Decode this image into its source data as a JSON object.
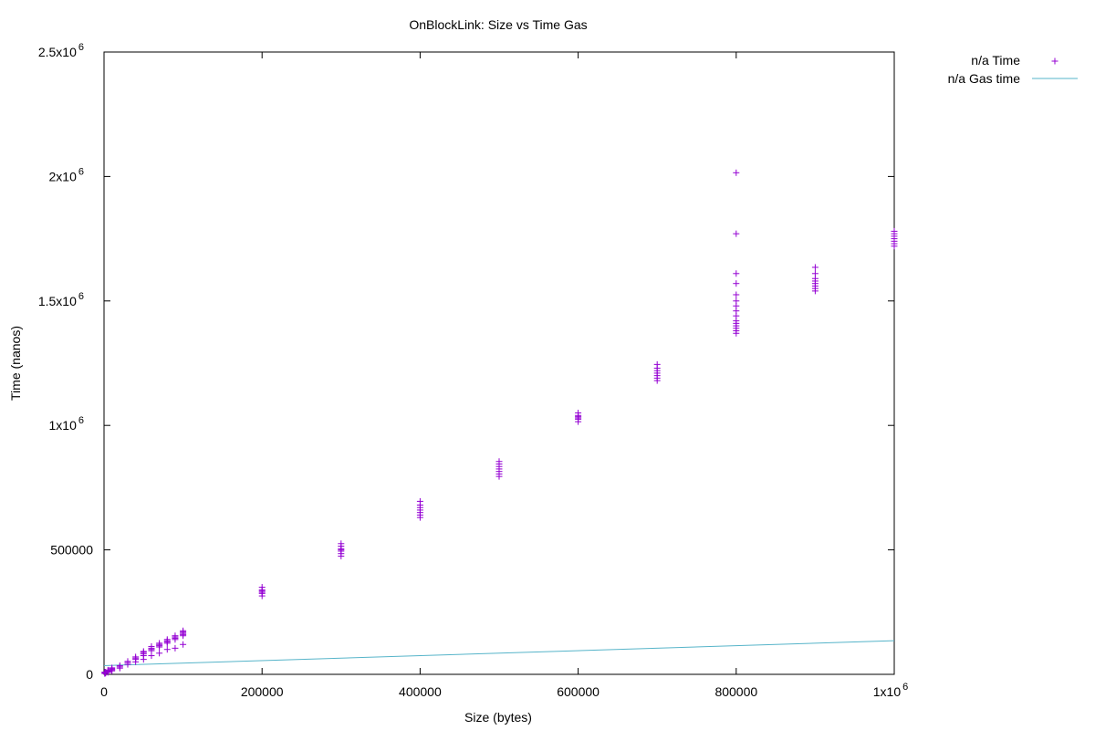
{
  "chart_data": {
    "type": "scatter",
    "title": "OnBlockLink: Size vs Time   Gas",
    "xlabel": "Size (bytes)",
    "ylabel": "Time (nanos)",
    "xlim": [
      0,
      1000000
    ],
    "ylim": [
      0,
      2500000
    ],
    "grid": false,
    "legend_position": "outside-top-right",
    "x_ticks": [
      {
        "value": 0,
        "label": "0"
      },
      {
        "value": 200000,
        "label": "200000"
      },
      {
        "value": 400000,
        "label": "400000"
      },
      {
        "value": 600000,
        "label": "600000"
      },
      {
        "value": 800000,
        "label": "800000"
      },
      {
        "value": 1000000,
        "label": "1x10",
        "exp": "6"
      }
    ],
    "y_ticks": [
      {
        "value": 0,
        "label": "0"
      },
      {
        "value": 500000,
        "label": "500000"
      },
      {
        "value": 1000000,
        "label": "1x10",
        "exp": "6"
      },
      {
        "value": 1500000,
        "label": "1.5x10",
        "exp": "6"
      },
      {
        "value": 2000000,
        "label": "2x10",
        "exp": "6"
      },
      {
        "value": 2500000,
        "label": "2.5x10",
        "exp": "6"
      }
    ],
    "series": [
      {
        "name": "n/a Time",
        "kind": "points",
        "marker": "plus",
        "color": "#9400d3",
        "clusters": [
          {
            "x": 1000,
            "y": [
              3000,
              5000,
              7000,
              9000
            ]
          },
          {
            "x": 2000,
            "y": [
              5000,
              7000,
              9000
            ]
          },
          {
            "x": 5000,
            "y": [
              8000,
              11000,
              14000,
              17000
            ]
          },
          {
            "x": 10000,
            "y": [
              14000,
              18000,
              22000,
              26000
            ]
          },
          {
            "x": 20000,
            "y": [
              25000,
              30000,
              35000
            ]
          },
          {
            "x": 30000,
            "y": [
              40000,
              47000,
              52000
            ]
          },
          {
            "x": 40000,
            "y": [
              50000,
              60000,
              65000,
              70000
            ]
          },
          {
            "x": 50000,
            "y": [
              60000,
              75000,
              82000,
              88000,
              92000
            ]
          },
          {
            "x": 60000,
            "y": [
              75000,
              95000,
              100000,
              105000,
              112000
            ]
          },
          {
            "x": 70000,
            "y": [
              85000,
              110000,
              115000,
              120000,
              125000
            ]
          },
          {
            "x": 80000,
            "y": [
              100000,
              125000,
              130000,
              135000,
              140000
            ]
          },
          {
            "x": 90000,
            "y": [
              105000,
              140000,
              145000,
              150000,
              155000
            ]
          },
          {
            "x": 100000,
            "y": [
              120000,
              155000,
              160000,
              165000,
              170000,
              175000
            ]
          },
          {
            "x": 200000,
            "y": [
              315000,
              325000,
              330000,
              335000,
              340000,
              350000
            ]
          },
          {
            "x": 300000,
            "y": [
              475000,
              485000,
              495000,
              500000,
              505000,
              515000,
              525000
            ]
          },
          {
            "x": 400000,
            "y": [
              630000,
              640000,
              650000,
              660000,
              670000,
              680000,
              695000
            ]
          },
          {
            "x": 500000,
            "y": [
              795000,
              805000,
              815000,
              825000,
              835000,
              845000,
              855000
            ]
          },
          {
            "x": 600000,
            "y": [
              1015000,
              1025000,
              1030000,
              1035000,
              1040000,
              1050000
            ]
          },
          {
            "x": 700000,
            "y": [
              1180000,
              1190000,
              1200000,
              1210000,
              1220000,
              1230000,
              1245000
            ]
          },
          {
            "x": 800000,
            "y": [
              1370000,
              1380000,
              1390000,
              1400000,
              1410000,
              1420000,
              1440000,
              1460000,
              1480000,
              1500000,
              1525000,
              1570000,
              1610000,
              1770000,
              2015000
            ]
          },
          {
            "x": 900000,
            "y": [
              1540000,
              1550000,
              1560000,
              1570000,
              1580000,
              1590000,
              1610000,
              1635000
            ]
          },
          {
            "x": 1000000,
            "y": [
              1720000,
              1730000,
              1740000,
              1750000,
              1760000,
              1770000,
              1780000
            ]
          }
        ]
      },
      {
        "name": "n/a Gas time",
        "kind": "line",
        "color": "#56b4c9",
        "points": [
          [
            0,
            35000
          ],
          [
            1000000,
            135000
          ]
        ]
      }
    ]
  }
}
